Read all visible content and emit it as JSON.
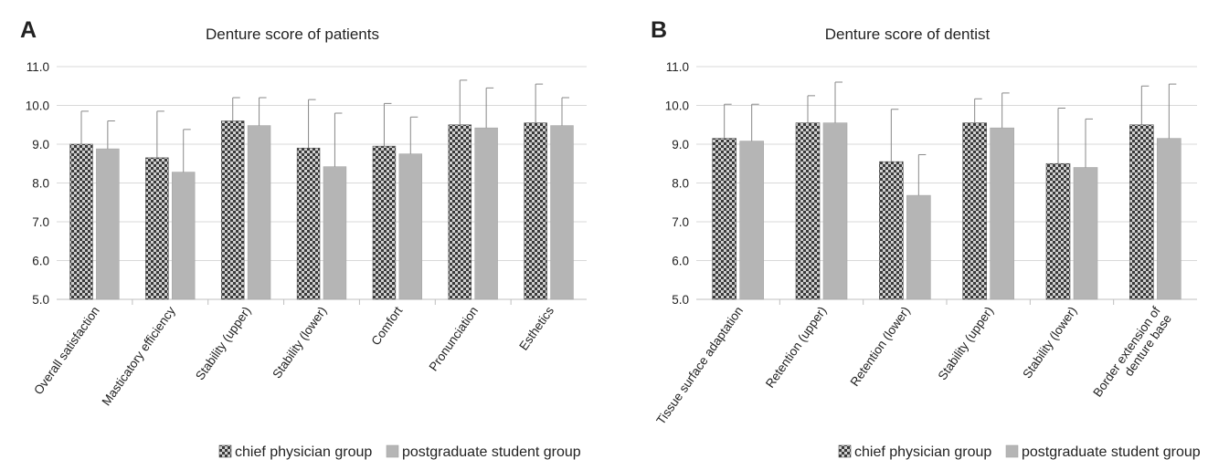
{
  "chart_data": [
    {
      "type": "bar",
      "panel_letter": "A",
      "title": "Denture score of patients",
      "categories": [
        "Overall satisfaction",
        "Masticatory efficiency",
        "Stability (upper)",
        "Stability (lower)",
        "Comfort",
        "Pronunciation",
        "Esthetics"
      ],
      "series": [
        {
          "name": "chief physician group",
          "values": [
            9.0,
            8.65,
            9.6,
            8.9,
            8.95,
            9.5,
            9.55
          ],
          "error": [
            0.85,
            1.2,
            0.6,
            1.25,
            1.1,
            1.15,
            1.0
          ],
          "pattern": "checker"
        },
        {
          "name": "postgraduate student group",
          "values": [
            8.88,
            8.28,
            9.48,
            8.42,
            8.75,
            9.42,
            9.48
          ],
          "error": [
            0.72,
            1.1,
            0.72,
            1.38,
            0.95,
            1.03,
            0.72
          ],
          "pattern": "solid"
        }
      ],
      "ylim": [
        5.0,
        11.0
      ],
      "yticks": [
        "5.0",
        "6.0",
        "7.0",
        "8.0",
        "9.0",
        "10.0",
        "11.0"
      ],
      "xlabel": "",
      "ylabel": "",
      "grid": true,
      "legend": "bottom"
    },
    {
      "type": "bar",
      "panel_letter": "B",
      "title": "Denture score of dentist",
      "categories": [
        "Tissue surface adaptation",
        "Retention (upper)",
        "Retention (lower)",
        "Stability (upper)",
        "Stability (lower)",
        "Border extension of\ndenture base"
      ],
      "series": [
        {
          "name": "chief physician group",
          "values": [
            9.15,
            9.55,
            8.55,
            9.55,
            8.5,
            9.5
          ],
          "error": [
            0.88,
            0.7,
            1.35,
            0.62,
            1.43,
            1.0
          ],
          "pattern": "checker"
        },
        {
          "name": "postgraduate student group",
          "values": [
            9.08,
            9.55,
            7.68,
            9.42,
            8.4,
            9.15
          ],
          "error": [
            0.95,
            1.05,
            1.05,
            0.9,
            1.25,
            1.4
          ],
          "pattern": "solid"
        }
      ],
      "ylim": [
        5.0,
        11.0
      ],
      "yticks": [
        "5.0",
        "6.0",
        "7.0",
        "8.0",
        "9.0",
        "10.0",
        "11.0"
      ],
      "xlabel": "",
      "ylabel": "",
      "grid": true,
      "legend": "bottom"
    }
  ],
  "colors": {
    "checker_dark": "#3a3a3a",
    "checker_light": "#d0d0d0",
    "solid_bar": "#b5b5b5",
    "grid": "#d9d9d9",
    "error_bar": "#888888",
    "text": "#222222"
  }
}
